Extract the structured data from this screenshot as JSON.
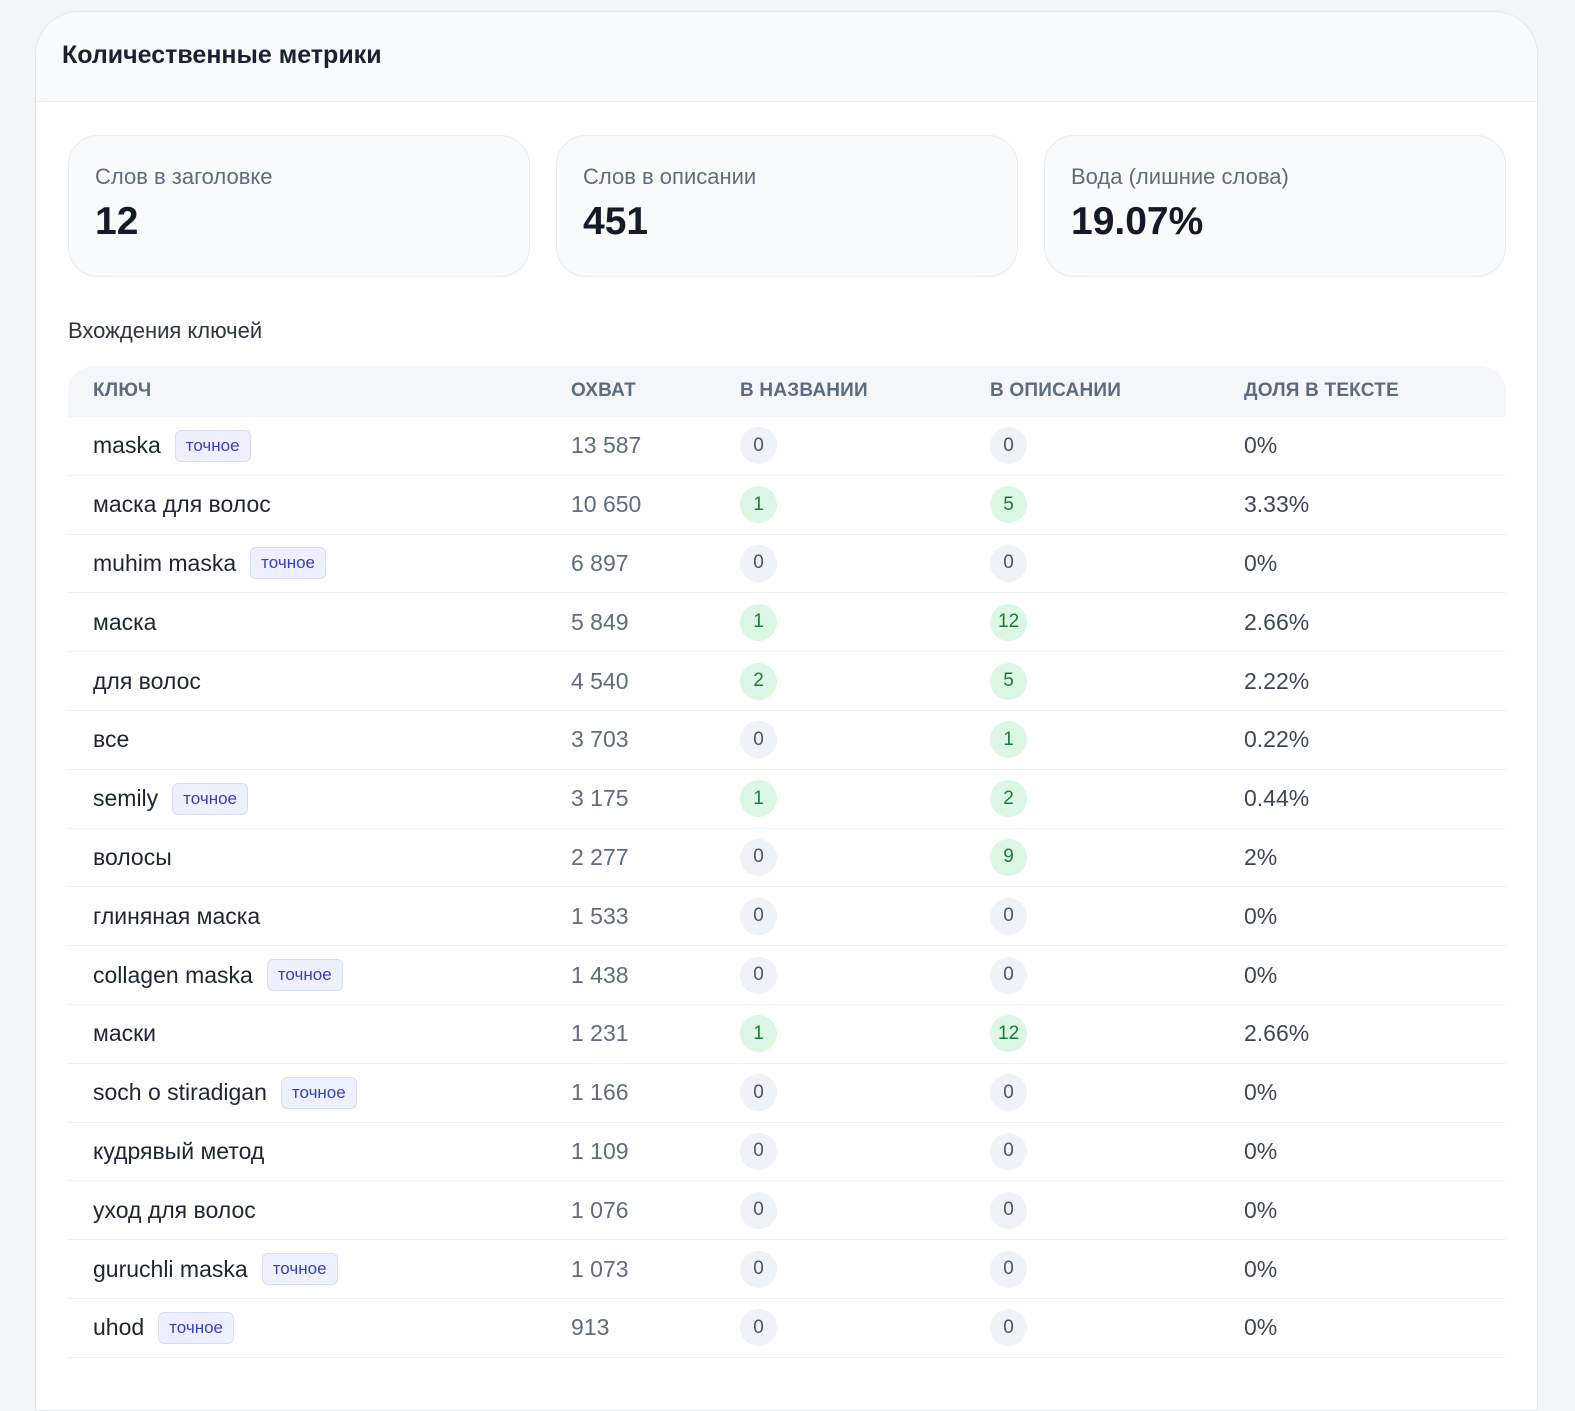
{
  "header": {
    "title": "Количественные метрики"
  },
  "stats": [
    {
      "label": "Слов в заголовке",
      "value": "12"
    },
    {
      "label": "Слов в описании",
      "value": "451"
    },
    {
      "label": "Вода (лишние слова)",
      "value": "19.07%"
    }
  ],
  "keys_section": {
    "title": "Вхождения ключей"
  },
  "table": {
    "columns": [
      "КЛЮЧ",
      "ОХВАТ",
      "В НАЗВАНИИ",
      "В ОПИСАНИИ",
      "ДОЛЯ В ТЕКСТЕ"
    ],
    "badge_label": "точное",
    "rows": [
      {
        "key": "maska",
        "exact": true,
        "reach": "13 587",
        "in_title": "0",
        "in_desc": "0",
        "share": "0%"
      },
      {
        "key": "маска для волос",
        "exact": false,
        "reach": "10 650",
        "in_title": "1",
        "in_desc": "5",
        "share": "3.33%"
      },
      {
        "key": "muhim maska",
        "exact": true,
        "reach": "6 897",
        "in_title": "0",
        "in_desc": "0",
        "share": "0%"
      },
      {
        "key": "маска",
        "exact": false,
        "reach": "5 849",
        "in_title": "1",
        "in_desc": "12",
        "share": "2.66%"
      },
      {
        "key": "для волос",
        "exact": false,
        "reach": "4 540",
        "in_title": "2",
        "in_desc": "5",
        "share": "2.22%"
      },
      {
        "key": "все",
        "exact": false,
        "reach": "3 703",
        "in_title": "0",
        "in_desc": "1",
        "share": "0.22%"
      },
      {
        "key": "semily",
        "exact": true,
        "reach": "3 175",
        "in_title": "1",
        "in_desc": "2",
        "share": "0.44%"
      },
      {
        "key": "волосы",
        "exact": false,
        "reach": "2 277",
        "in_title": "0",
        "in_desc": "9",
        "share": "2%"
      },
      {
        "key": "глиняная маска",
        "exact": false,
        "reach": "1 533",
        "in_title": "0",
        "in_desc": "0",
        "share": "0%"
      },
      {
        "key": "collagen maska",
        "exact": true,
        "reach": "1 438",
        "in_title": "0",
        "in_desc": "0",
        "share": "0%"
      },
      {
        "key": "маски",
        "exact": false,
        "reach": "1 231",
        "in_title": "1",
        "in_desc": "12",
        "share": "2.66%"
      },
      {
        "key": "soch o stiradigan",
        "exact": true,
        "reach": "1 166",
        "in_title": "0",
        "in_desc": "0",
        "share": "0%"
      },
      {
        "key": "кудрявый метод",
        "exact": false,
        "reach": "1 109",
        "in_title": "0",
        "in_desc": "0",
        "share": "0%"
      },
      {
        "key": "уход для волос",
        "exact": false,
        "reach": "1 076",
        "in_title": "0",
        "in_desc": "0",
        "share": "0%"
      },
      {
        "key": "guruchli maska",
        "exact": true,
        "reach": "1 073",
        "in_title": "0",
        "in_desc": "0",
        "share": "0%"
      },
      {
        "key": "uhod",
        "exact": true,
        "reach": "913",
        "in_title": "0",
        "in_desc": "0",
        "share": "0%"
      }
    ]
  },
  "colors": {
    "zero_pill_bg": "#eff2f6",
    "positive_pill_bg": "#dcf7e4",
    "positive_pill_text": "#1b7a3c",
    "badge_text": "#3a3fb8",
    "badge_bg": "#eef0ff"
  }
}
